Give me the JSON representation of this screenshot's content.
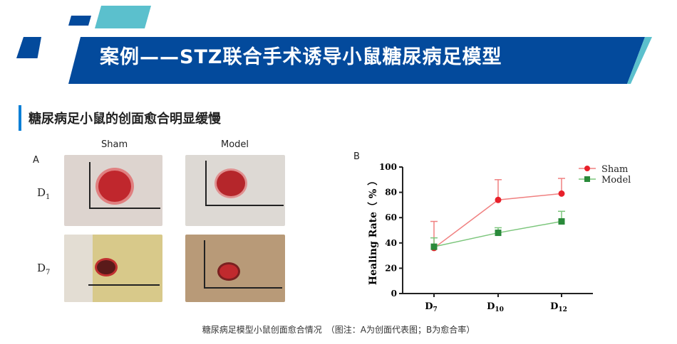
{
  "header": {
    "title": "案例——STZ联合手术诱导小鼠糖尿病足模型",
    "colors": {
      "primary": "#034a9c",
      "accent": "#5bc0cd"
    }
  },
  "section": {
    "subtitle": "糖尿病足小鼠的创面愈合明显缓慢"
  },
  "panel_a": {
    "label": "A",
    "columns": [
      "Sham",
      "Model"
    ],
    "rows": [
      "D1",
      "D7"
    ],
    "row_main": [
      "D",
      "D"
    ],
    "row_sub": [
      "1",
      "7"
    ]
  },
  "panel_b": {
    "label": "B"
  },
  "caption": "糖尿病足模型小鼠创面愈合情况　（图注：A为创面代表图；B为愈合率）",
  "chart_data": {
    "type": "line",
    "categories": [
      "D7",
      "D10",
      "D12"
    ],
    "category_main": [
      "D",
      "D",
      "D"
    ],
    "category_sub": [
      "7",
      "10",
      "12"
    ],
    "ylabel": "Healing Rate（ % ）",
    "ylim": [
      0,
      100
    ],
    "yticks": [
      0,
      20,
      40,
      60,
      80,
      100
    ],
    "grid": false,
    "legend": "top-right",
    "series": [
      {
        "name": "Sham",
        "values": [
          36,
          74,
          79
        ],
        "error": [
          21,
          16,
          12
        ],
        "color": "#e8202a",
        "line_color": "#f08080",
        "marker": "circle"
      },
      {
        "name": "Model",
        "values": [
          37,
          48,
          57
        ],
        "error": [
          7,
          4,
          8
        ],
        "color": "#2a8a3a",
        "line_color": "#7cc67c",
        "marker": "square"
      }
    ]
  }
}
